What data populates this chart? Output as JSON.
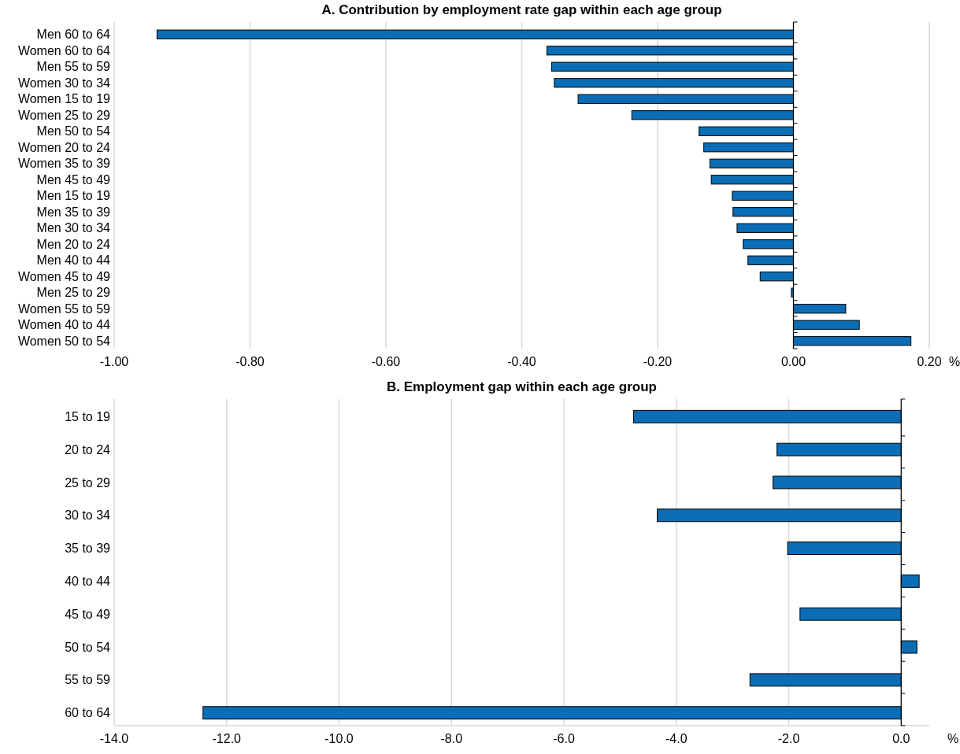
{
  "chart_data": [
    {
      "type": "bar",
      "orientation": "horizontal",
      "title": "A. Contribution by employment rate gap within each age group",
      "xlabel": "%",
      "grid": "x",
      "color": "#0a6db5",
      "categories": [
        "Men 60 to 64",
        "Women 60 to 64",
        "Men 55 to 59",
        "Women 30 to 34",
        "Women 15 to 19",
        "Women 25 to 29",
        "Men 50 to 54",
        "Women 20 to 24",
        "Women 35 to 39",
        "Men 45 to 49",
        "Men 15 to 19",
        "Men 35 to 39",
        "Men 30 to 34",
        "Men 20 to 24",
        "Men 40 to 44",
        "Women 45 to 49",
        "Men 25 to 29",
        "Women 55 to 59",
        "Women 40 to 44",
        "Women 50 to 54"
      ],
      "values": [
        -0.937,
        -0.363,
        -0.356,
        -0.352,
        -0.317,
        -0.238,
        -0.139,
        -0.132,
        -0.123,
        -0.121,
        -0.09,
        -0.089,
        -0.083,
        -0.074,
        -0.067,
        -0.049,
        -0.003,
        0.077,
        0.097,
        0.173
      ],
      "xlim": [
        -1,
        0.2
      ],
      "xticks": [
        {
          "value": -1,
          "label": "-1.00"
        },
        {
          "value": -0.8,
          "label": "-0.80"
        },
        {
          "value": -0.6,
          "label": "-0.60"
        },
        {
          "value": -0.4,
          "label": "-0.40"
        },
        {
          "value": -0.2,
          "label": "-0.20"
        },
        {
          "value": 0,
          "label": "0.00"
        },
        {
          "value": 0.2,
          "label": "0.20"
        }
      ]
    },
    {
      "type": "bar",
      "orientation": "horizontal",
      "title": "B. Employment gap within each age group",
      "xlabel": "%",
      "grid": "x",
      "color": "#0a6db5",
      "categories": [
        "15 to 19",
        "20 to 24",
        "25 to 29",
        "30 to 34",
        "35 to 39",
        "40 to 44",
        "45 to 49",
        "50 to 54",
        "55 to 59",
        "60 to 64"
      ],
      "values": [
        -4.76,
        -2.21,
        -2.28,
        -4.34,
        -2.02,
        0.32,
        -1.8,
        0.28,
        -2.69,
        -12.42
      ],
      "xlim": [
        -14,
        0.5
      ],
      "xticks": [
        {
          "value": -14,
          "label": "-14.0"
        },
        {
          "value": -12,
          "label": "-12.0"
        },
        {
          "value": -10,
          "label": "-10.0"
        },
        {
          "value": -8,
          "label": "-8.0"
        },
        {
          "value": -6,
          "label": "-6.0"
        },
        {
          "value": -4,
          "label": "-4.0"
        },
        {
          "value": -2,
          "label": "-2.0"
        },
        {
          "value": 0,
          "label": "0.0"
        }
      ]
    }
  ]
}
